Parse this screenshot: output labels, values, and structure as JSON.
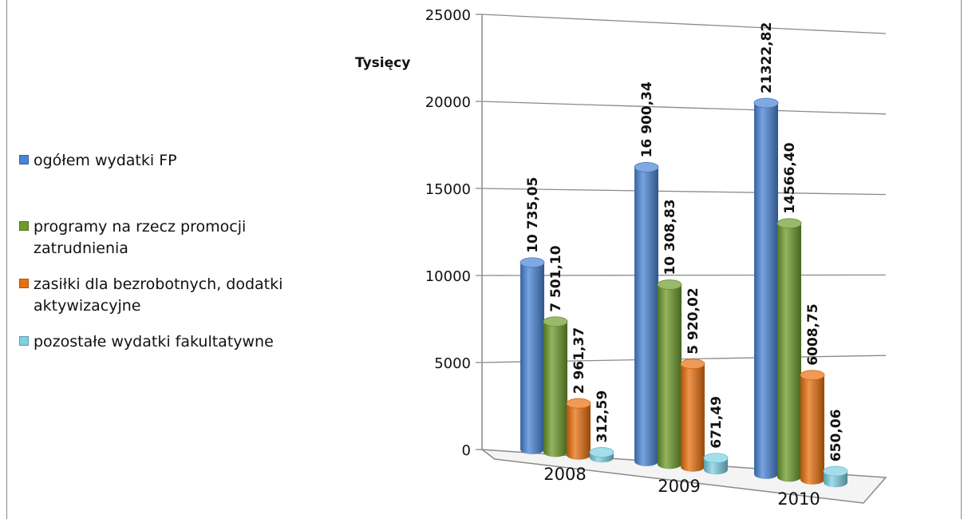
{
  "chart_data": {
    "type": "bar",
    "ylabel": "Tysięcy",
    "ylim": [
      0,
      25000
    ],
    "yticks": [
      "25000",
      "20000",
      "15000",
      "10000",
      "5000",
      "0"
    ],
    "categories": [
      "2008",
      "2009",
      "2010"
    ],
    "grid": true,
    "legend_position": "left",
    "series": [
      {
        "name": "ogółem wydatki FP",
        "color": "#4a84d6",
        "values": [
          10735.05,
          16900.34,
          21322.82
        ],
        "labels": [
          "10 735,05",
          "16 900,34",
          "21322,82"
        ]
      },
      {
        "name": "programy na rzecz promocji zatrudnienia",
        "color": "#6f9b2c",
        "values": [
          7501.1,
          10308.83,
          14566.4
        ],
        "labels": [
          "7 501,10",
          "10 308,83",
          "14566,40"
        ]
      },
      {
        "name": "zasiłki dla bezrobotnych, dodatki aktywizacyjne",
        "color": "#e8700f",
        "values": [
          2961.37,
          5920.02,
          6008.75
        ],
        "labels": [
          "2 961,37",
          "5 920,02",
          "6008,75"
        ]
      },
      {
        "name": "pozostałe wydatki fakultatywne",
        "color": "#7fd0e3",
        "values": [
          312.59,
          671.49,
          650.06
        ],
        "labels": [
          "312,59",
          "671,49",
          "650,06"
        ]
      }
    ]
  }
}
